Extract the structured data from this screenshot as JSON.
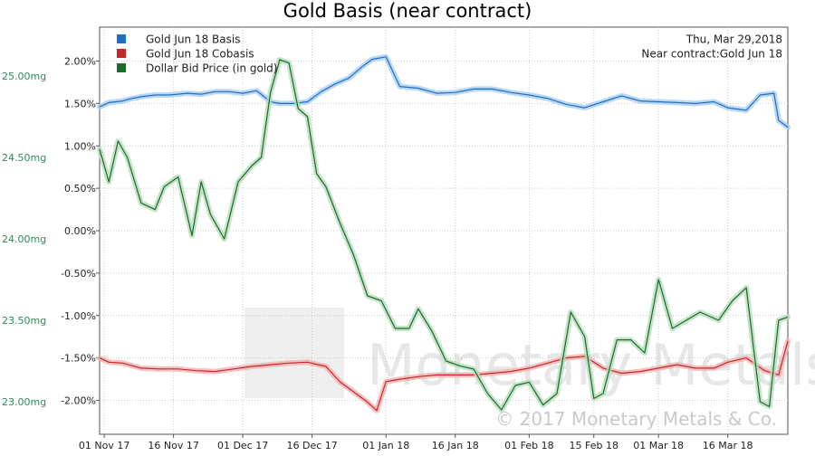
{
  "chart_data": {
    "type": "line",
    "title": "Gold Basis (near contract)",
    "annotation_date": "Thu, Mar 29,2018",
    "annotation_contract": "Near contract:Gold Jun 18",
    "watermark_name": "Monetary Metals",
    "watermark_copyright": "© 2017 Monetary Metals & Co.",
    "legend_position": "top-left",
    "grid": true,
    "x_tick_labels": [
      "01 Nov 17",
      "16 Nov 17",
      "01 Dec 17",
      "16 Dec 17",
      "01 Jan 18",
      "16 Jan 18",
      "01 Feb 18",
      "15 Feb 18",
      "01 Mar 18",
      "16 Mar 18"
    ],
    "x_ticks": [
      "2017-11-01",
      "2017-11-16",
      "2017-12-01",
      "2017-12-16",
      "2018-01-01",
      "2018-01-16",
      "2018-02-01",
      "2018-02-15",
      "2018-03-01",
      "2018-03-16"
    ],
    "x_range": [
      "2017-10-31",
      "2018-03-29"
    ],
    "left_axis": {
      "ylim": [
        -2.4,
        2.4
      ],
      "ticks": [
        2.0,
        1.5,
        1.0,
        0.5,
        0.0,
        -0.5,
        -1.0,
        -1.5,
        -2.0
      ],
      "tick_labels": [
        "2.00%",
        "1.50%",
        "1.00%",
        "0.50%",
        "0.00%",
        "-0.50%",
        "-1.00%",
        "-1.50%",
        "-2.00%"
      ]
    },
    "right_axis": {
      "ylim": [
        22.8,
        25.3
      ],
      "ticks": [
        25.0,
        24.5,
        24.0,
        23.5,
        23.0
      ],
      "tick_labels": [
        "25.00mg",
        "24.50mg",
        "24.00mg",
        "23.50mg",
        "23.00mg"
      ],
      "color": "#2e8b57"
    },
    "series": [
      {
        "name": "Gold Jun 18 Basis",
        "axis": "left",
        "color": "#1f6fc0",
        "glow": "#a9cdf2",
        "x": [
          "2017-10-31",
          "2017-11-02",
          "2017-11-05",
          "2017-11-07",
          "2017-11-09",
          "2017-11-12",
          "2017-11-15",
          "2017-11-19",
          "2017-11-22",
          "2017-11-25",
          "2017-11-28",
          "2017-12-01",
          "2017-12-04",
          "2017-12-07",
          "2017-12-09",
          "2017-12-12",
          "2017-12-15",
          "2017-12-18",
          "2017-12-21",
          "2017-12-24",
          "2017-12-27",
          "2017-12-29",
          "2018-01-01",
          "2018-01-04",
          "2018-01-08",
          "2018-01-12",
          "2018-01-16",
          "2018-01-20",
          "2018-01-24",
          "2018-01-28",
          "2018-02-01",
          "2018-02-05",
          "2018-02-09",
          "2018-02-13",
          "2018-02-17",
          "2018-02-21",
          "2018-02-25",
          "2018-03-01",
          "2018-03-05",
          "2018-03-09",
          "2018-03-13",
          "2018-03-16",
          "2018-03-20",
          "2018-03-23",
          "2018-03-26",
          "2018-03-27",
          "2018-03-29"
        ],
        "y": [
          1.46,
          1.51,
          1.53,
          1.56,
          1.58,
          1.6,
          1.6,
          1.62,
          1.61,
          1.64,
          1.64,
          1.62,
          1.65,
          1.52,
          1.5,
          1.5,
          1.52,
          1.64,
          1.73,
          1.8,
          1.94,
          2.02,
          2.05,
          1.7,
          1.68,
          1.62,
          1.63,
          1.67,
          1.67,
          1.63,
          1.6,
          1.56,
          1.49,
          1.45,
          1.52,
          1.59,
          1.53,
          1.52,
          1.51,
          1.5,
          1.52,
          1.45,
          1.42,
          1.6,
          1.62,
          1.3,
          1.22
        ]
      },
      {
        "name": "Gold Jun 18 Cobasis",
        "axis": "left",
        "color": "#c62828",
        "glow": "#f2b3b3",
        "x": [
          "2017-10-31",
          "2017-11-02",
          "2017-11-05",
          "2017-11-09",
          "2017-11-13",
          "2017-11-17",
          "2017-11-21",
          "2017-11-25",
          "2017-11-29",
          "2017-12-03",
          "2017-12-07",
          "2017-12-11",
          "2017-12-15",
          "2017-12-19",
          "2017-12-22",
          "2017-12-25",
          "2017-12-28",
          "2017-12-30",
          "2018-01-01",
          "2018-01-04",
          "2018-01-08",
          "2018-01-12",
          "2018-01-16",
          "2018-01-20",
          "2018-01-24",
          "2018-01-28",
          "2018-02-01",
          "2018-02-05",
          "2018-02-09",
          "2018-02-13",
          "2018-02-17",
          "2018-02-21",
          "2018-02-25",
          "2018-03-01",
          "2018-03-05",
          "2018-03-09",
          "2018-03-13",
          "2018-03-16",
          "2018-03-20",
          "2018-03-24",
          "2018-03-27",
          "2018-03-29"
        ],
        "y": [
          -1.5,
          -1.55,
          -1.56,
          -1.62,
          -1.63,
          -1.63,
          -1.65,
          -1.66,
          -1.63,
          -1.6,
          -1.58,
          -1.56,
          -1.55,
          -1.6,
          -1.78,
          -1.9,
          -2.02,
          -2.12,
          -1.78,
          -1.75,
          -1.72,
          -1.7,
          -1.7,
          -1.7,
          -1.68,
          -1.66,
          -1.62,
          -1.56,
          -1.5,
          -1.48,
          -1.62,
          -1.68,
          -1.66,
          -1.62,
          -1.58,
          -1.62,
          -1.62,
          -1.55,
          -1.5,
          -1.65,
          -1.7,
          -1.3
        ]
      },
      {
        "name": "Dollar Bid Price (in gold)",
        "axis": "right",
        "color": "#1a6b2c",
        "glow": "#b6dcb9",
        "x": [
          "2017-10-31",
          "2017-11-02",
          "2017-11-04",
          "2017-11-06",
          "2017-11-09",
          "2017-11-12",
          "2017-11-14",
          "2017-11-17",
          "2017-11-20",
          "2017-11-22",
          "2017-11-24",
          "2017-11-27",
          "2017-11-30",
          "2017-12-03",
          "2017-12-05",
          "2017-12-07",
          "2017-12-09",
          "2017-12-11",
          "2017-12-13",
          "2017-12-15",
          "2017-12-17",
          "2017-12-19",
          "2017-12-22",
          "2017-12-25",
          "2017-12-28",
          "2017-12-31",
          "2018-01-03",
          "2018-01-06",
          "2018-01-08",
          "2018-01-11",
          "2018-01-14",
          "2018-01-17",
          "2018-01-20",
          "2018-01-23",
          "2018-01-26",
          "2018-01-29",
          "2018-02-01",
          "2018-02-04",
          "2018-02-07",
          "2018-02-10",
          "2018-02-13",
          "2018-02-15",
          "2018-02-17",
          "2018-02-20",
          "2018-02-23",
          "2018-02-26",
          "2018-03-01",
          "2018-03-04",
          "2018-03-07",
          "2018-03-10",
          "2018-03-14",
          "2018-03-17",
          "2018-03-20",
          "2018-03-23",
          "2018-03-25",
          "2018-03-27",
          "2018-03-29"
        ],
        "y": [
          24.55,
          24.35,
          24.6,
          24.5,
          24.22,
          24.18,
          24.32,
          24.38,
          24.02,
          24.35,
          24.15,
          24.0,
          24.35,
          24.45,
          24.5,
          24.9,
          25.1,
          25.08,
          24.8,
          24.75,
          24.4,
          24.32,
          24.1,
          23.9,
          23.65,
          23.62,
          23.45,
          23.45,
          23.57,
          23.43,
          23.25,
          23.22,
          23.2,
          23.05,
          22.95,
          23.1,
          23.12,
          22.98,
          23.05,
          23.55,
          23.4,
          23.02,
          23.05,
          23.38,
          23.38,
          23.3,
          23.75,
          23.45,
          23.5,
          23.55,
          23.5,
          23.62,
          23.7,
          23.0,
          22.97,
          23.5,
          23.52
        ]
      }
    ]
  }
}
